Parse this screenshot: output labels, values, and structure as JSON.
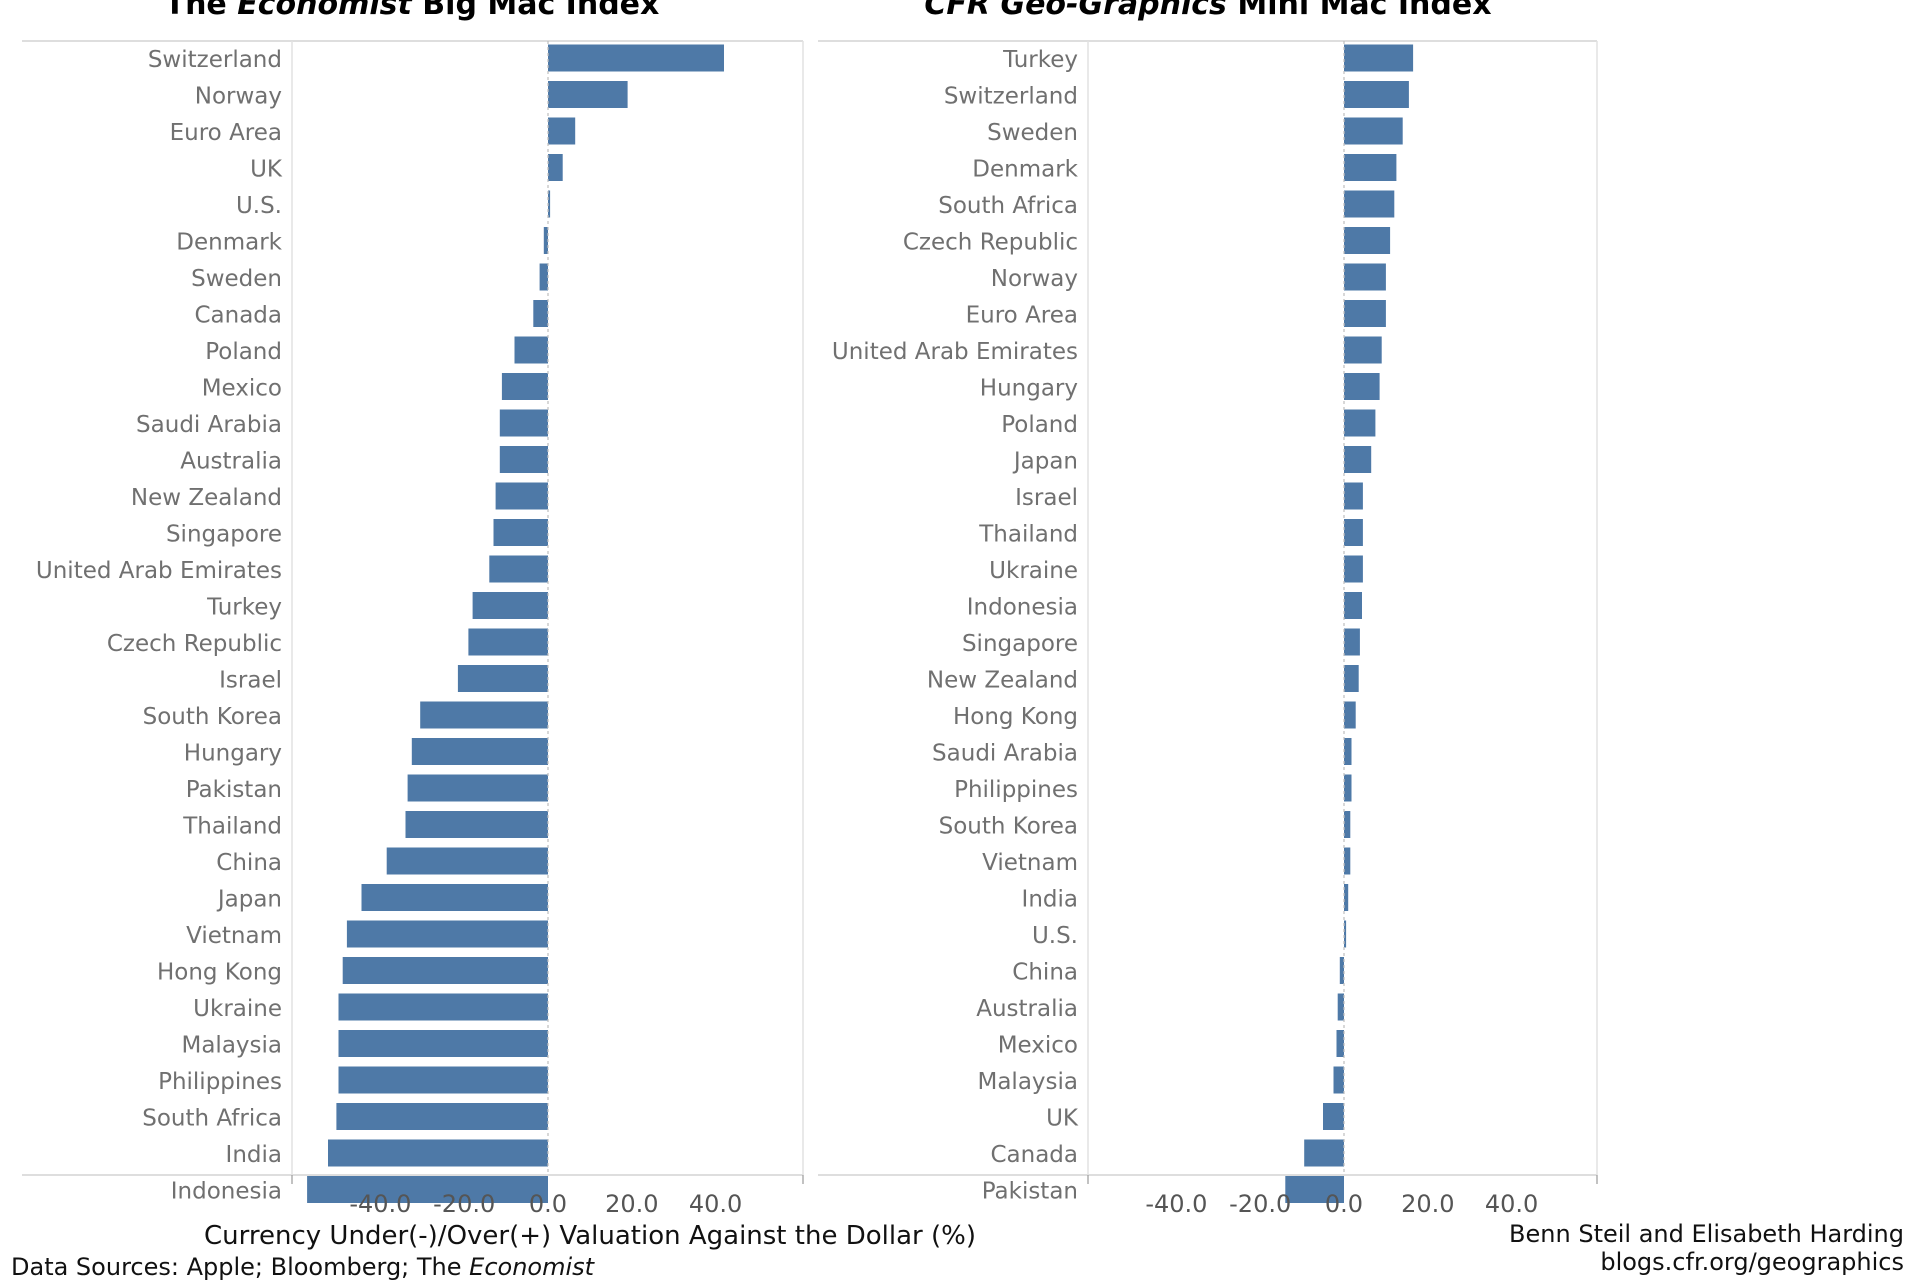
{
  "chart_data": [
    {
      "type": "bar",
      "orientation": "horizontal",
      "title_parts": [
        {
          "text": "The ",
          "italic": false
        },
        {
          "text": "Economist",
          "italic": true
        },
        {
          "text": " Big Mac Index",
          "italic": false
        }
      ],
      "categories": [
        "Switzerland",
        "Norway",
        "Euro Area",
        "UK",
        "U.S.",
        "Denmark",
        "Sweden",
        "Canada",
        "Poland",
        "Mexico",
        "Saudi Arabia",
        "Australia",
        "New Zealand",
        "Singapore",
        "United Arab Emirates",
        "Turkey",
        "Czech Republic",
        "Israel",
        "South Korea",
        "Hungary",
        "Pakistan",
        "Thailand",
        "China",
        "Japan",
        "Vietnam",
        "Hong Kong",
        "Ukraine",
        "Malaysia",
        "Philippines",
        "South Africa",
        "India",
        "Indonesia"
      ],
      "values": [
        42.0,
        19.0,
        6.5,
        3.5,
        0.5,
        -1.0,
        -2.0,
        -3.5,
        -8.0,
        -11.0,
        -11.5,
        -11.5,
        -12.5,
        -13.0,
        -14.0,
        -18.0,
        -19.0,
        -21.5,
        -30.5,
        -32.5,
        -33.5,
        -34.0,
        -38.5,
        -44.5,
        -48.0,
        -49.0,
        -50.0,
        -50.0,
        -50.0,
        -50.5,
        -52.5,
        -57.5
      ],
      "x_ticks": [
        "-40.0",
        "-20.0",
        "0.0",
        "20.0",
        "40.0"
      ],
      "xlim": [
        -61.5,
        60
      ],
      "grid": false,
      "color": "#4e79a7"
    },
    {
      "type": "bar",
      "orientation": "horizontal",
      "title_parts": [
        {
          "text": "CFR Geo-Graphics",
          "italic": true
        },
        {
          "text": " Mini Mac Index",
          "italic": false
        }
      ],
      "categories": [
        "Turkey",
        "Switzerland",
        "Sweden",
        "Denmark",
        "South Africa",
        "Czech Republic",
        "Norway",
        "Euro Area",
        "United Arab Emirates",
        "Hungary",
        "Poland",
        "Japan",
        "Israel",
        "Thailand",
        "Ukraine",
        "Indonesia",
        "Singapore",
        "New Zealand",
        "Hong Kong",
        "Saudi Arabia",
        "Philippines",
        "South Korea",
        "Vietnam",
        "India",
        "U.S.",
        "China",
        "Australia",
        "Mexico",
        "Malaysia",
        "UK",
        "Canada",
        "Pakistan"
      ],
      "values": [
        16.5,
        15.5,
        14.0,
        12.5,
        12.0,
        11.0,
        10.0,
        10.0,
        9.0,
        8.5,
        7.5,
        6.5,
        4.5,
        4.5,
        4.5,
        4.3,
        3.8,
        3.5,
        2.8,
        1.8,
        1.8,
        1.5,
        1.5,
        1.0,
        0.5,
        -1.0,
        -1.5,
        -1.8,
        -2.5,
        -5.0,
        -9.5,
        -14.0
      ],
      "x_ticks": [
        "-40.0",
        "-20.0",
        "0.0",
        "20.0",
        "40.0"
      ],
      "xlim": [
        -61.5,
        60
      ],
      "grid": false,
      "color": "#4e79a7"
    }
  ],
  "axis_title": "Currency Under(-)/Over(+) Valuation Against the Dollar (%)",
  "footer": {
    "source_prefix": "Data Sources: Apple; Bloomberg; The ",
    "source_italic": "Economist",
    "credit": "Benn Steil and Elisabeth Harding",
    "url": "blogs.cfr.org/geographics"
  }
}
